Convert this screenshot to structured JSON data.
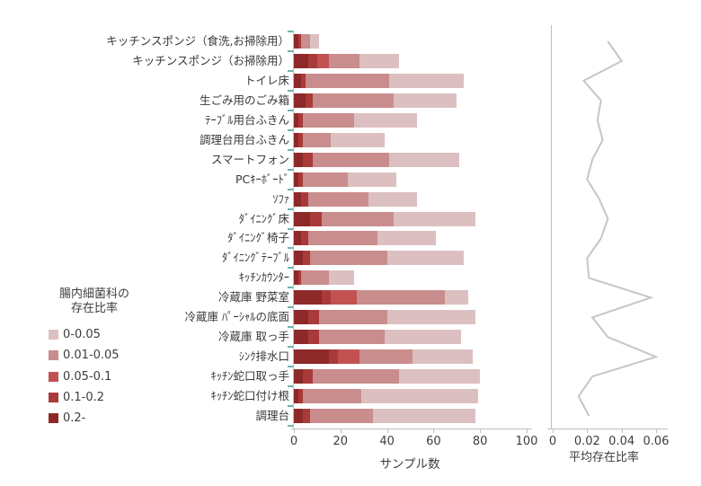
{
  "figure": {
    "background": "#ffffff",
    "legend": {
      "title_lines": [
        "腸内細菌科の",
        "存在比率"
      ],
      "items": [
        {
          "label": "0-0.05",
          "color": "#dcc0c1"
        },
        {
          "label": "0.01-0.05",
          "color": "#ca8d8d"
        },
        {
          "label": "0.05-0.1",
          "color": "#c25252"
        },
        {
          "label": "0.1-0.2",
          "color": "#a93a3a"
        },
        {
          "label": "0.2-",
          "color": "#8d2929"
        }
      ]
    }
  },
  "chart_data": [
    {
      "type": "bar",
      "orientation": "horizontal",
      "stacked": true,
      "title": "",
      "categories": [
        "キッチンスポンジ（食洗,お掃除用）",
        "キッチンスポンジ（お掃除用）",
        "トイレ床",
        "生ごみ用のごみ箱",
        "ﾃｰﾌﾞﾙ用台ふきん",
        "調理台用台ふきん",
        "スマートフォン",
        "PCｷｰﾎﾞｰﾄﾞ",
        "ｿﾌｧ",
        "ﾀﾞｲﾆﾝｸﾞ床",
        "ﾀﾞｲﾆﾝｸﾞ椅子",
        "ﾀﾞｲﾆﾝｸﾞﾃｰﾌﾞﾙ",
        "ｷｯﾁﾝｶｳﾝﾀｰ",
        "冷蔵庫 野菜室",
        "冷蔵庫 ﾊﾟｰｼｬﾙの底面",
        "冷蔵庫 取っ手",
        "ｼﾝｸ排水口",
        "ｷｯﾁﾝ蛇口取っ手",
        "ｷｯﾁﾝ蛇口付け根",
        "調理台"
      ],
      "series": [
        {
          "name": "0.2-",
          "color": "#8d2929",
          "values": [
            2,
            6,
            3,
            5,
            2,
            2,
            4,
            2,
            3,
            7,
            3,
            4,
            2,
            12,
            6,
            6,
            15,
            4,
            2,
            4
          ]
        },
        {
          "name": "0.1-0.2",
          "color": "#a93a3a",
          "values": [
            1,
            4,
            2,
            3,
            2,
            2,
            4,
            2,
            3,
            5,
            3,
            3,
            1,
            4,
            5,
            5,
            4,
            4,
            2,
            3
          ]
        },
        {
          "name": "0.05-0.1",
          "color": "#c25252",
          "values": [
            0,
            5,
            0,
            0,
            0,
            0,
            0,
            0,
            0,
            0,
            0,
            0,
            0,
            11,
            0,
            0,
            9,
            0,
            0,
            0
          ]
        },
        {
          "name": "0.01-0.05",
          "color": "#ca8d8d",
          "values": [
            4,
            13,
            36,
            35,
            22,
            12,
            33,
            19,
            26,
            31,
            30,
            33,
            12,
            38,
            29,
            28,
            23,
            37,
            25,
            27
          ]
        },
        {
          "name": "0-0.05",
          "color": "#dcc0c1",
          "values": [
            4,
            17,
            32,
            27,
            27,
            23,
            30,
            21,
            21,
            35,
            25,
            33,
            11,
            10,
            38,
            33,
            26,
            35,
            50,
            44
          ]
        }
      ],
      "xlabel": "サンプル数",
      "xlim": [
        0,
        100
      ],
      "xticks": [
        0,
        20,
        40,
        60,
        80,
        100
      ],
      "xtick_labels": [
        "0",
        "20",
        "40",
        "60",
        "80",
        "100"
      ],
      "grid": false,
      "legend_position": "left",
      "axis_color": "#bfbfbf",
      "category_tick_color": "#6fb3ab"
    },
    {
      "type": "line",
      "orientation": "horizontal",
      "categories": [
        "キッチンスポンジ（食洗,お掃除用）",
        "キッチンスポンジ（お掃除用）",
        "トイレ床",
        "生ごみ用のごみ箱",
        "ﾃｰﾌﾞﾙ用台ふきん",
        "調理台用台ふきん",
        "スマートフォン",
        "PCｷｰﾎﾞｰﾄﾞ",
        "ｿﾌｧ",
        "ﾀﾞｲﾆﾝｸﾞ床",
        "ﾀﾞｲﾆﾝｸﾞ椅子",
        "ﾀﾞｲﾆﾝｸﾞﾃｰﾌﾞﾙ",
        "ｷｯﾁﾝｶｳﾝﾀｰ",
        "冷蔵庫 野菜室",
        "冷蔵庫 ﾊﾟｰｼｬﾙの底面",
        "冷蔵庫 取っ手",
        "ｼﾝｸ排水口",
        "ｷｯﾁﾝ蛇口取っ手",
        "ｷｯﾁﾝ蛇口付け根",
        "調理台"
      ],
      "values": [
        0.032,
        0.04,
        0.018,
        0.028,
        0.026,
        0.029,
        0.023,
        0.02,
        0.027,
        0.032,
        0.028,
        0.02,
        0.021,
        0.057,
        0.023,
        0.032,
        0.06,
        0.023,
        0.015,
        0.021
      ],
      "xlabel": "平均存在比率",
      "xlim": [
        0,
        0.06
      ],
      "xticks": [
        0,
        0.02,
        0.04,
        0.06
      ],
      "xtick_labels": [
        "0",
        "0.02",
        "0.04",
        "0.06"
      ],
      "grid": false,
      "line_color": "#c9c5c5",
      "axis_color": "#bfbfbf"
    }
  ]
}
